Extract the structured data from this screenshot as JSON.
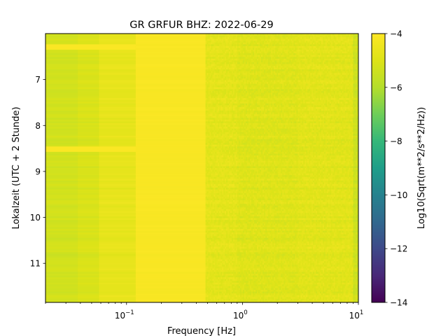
{
  "chart_data": {
    "type": "heatmap",
    "title": "GR GRFUR  BHZ: 2022-06-29",
    "xlabel": "Frequency [Hz]",
    "ylabel": "Lokalzeit (UTC + 2 Stunde)",
    "x_scale": "log",
    "x_range": [
      0.02,
      10
    ],
    "x_ticks": [
      {
        "value": 0.1,
        "label": "10",
        "exp": "−1"
      },
      {
        "value": 1,
        "label": "10",
        "exp": "0"
      },
      {
        "value": 10,
        "label": "10",
        "exp": "1"
      }
    ],
    "y_range": [
      6.0,
      11.85
    ],
    "y_inverted": true,
    "y_ticks": [
      {
        "value": 7,
        "label": "7"
      },
      {
        "value": 8,
        "label": "8"
      },
      {
        "value": 9,
        "label": "9"
      },
      {
        "value": 10,
        "label": "10"
      },
      {
        "value": 11,
        "label": "11"
      }
    ],
    "colorbar": {
      "label": "Log10(Sqrt(m**2/s**2/Hz))",
      "range": [
        -14,
        -4
      ],
      "colormap": "viridis",
      "ticks": [
        {
          "value": -4,
          "label": "−4"
        },
        {
          "value": -6,
          "label": "−6"
        },
        {
          "value": -8,
          "label": "−8"
        },
        {
          "value": -10,
          "label": "−10"
        },
        {
          "value": -12,
          "label": "−12"
        },
        {
          "value": -14,
          "label": "−14"
        }
      ]
    },
    "frequency_bands": [
      {
        "f_min": 0.02,
        "f_max": 0.038,
        "value": -5.3
      },
      {
        "f_min": 0.038,
        "f_max": 0.058,
        "value": -5.1
      },
      {
        "f_min": 0.058,
        "f_max": 0.12,
        "value": -4.7
      },
      {
        "f_min": 0.12,
        "f_max": 0.48,
        "value": -4.15
      },
      {
        "f_min": 0.48,
        "f_max": 0.9,
        "value": -4.8
      },
      {
        "f_min": 0.9,
        "f_max": 3.0,
        "value": -4.95
      },
      {
        "f_min": 3.0,
        "f_max": 9.0,
        "value": -4.85
      },
      {
        "f_min": 9.0,
        "f_max": 10.0,
        "value": -5.4
      }
    ],
    "time_events": [
      {
        "time": 6.3,
        "value": -4.1
      },
      {
        "time": 8.5,
        "value": -4.1
      }
    ]
  }
}
